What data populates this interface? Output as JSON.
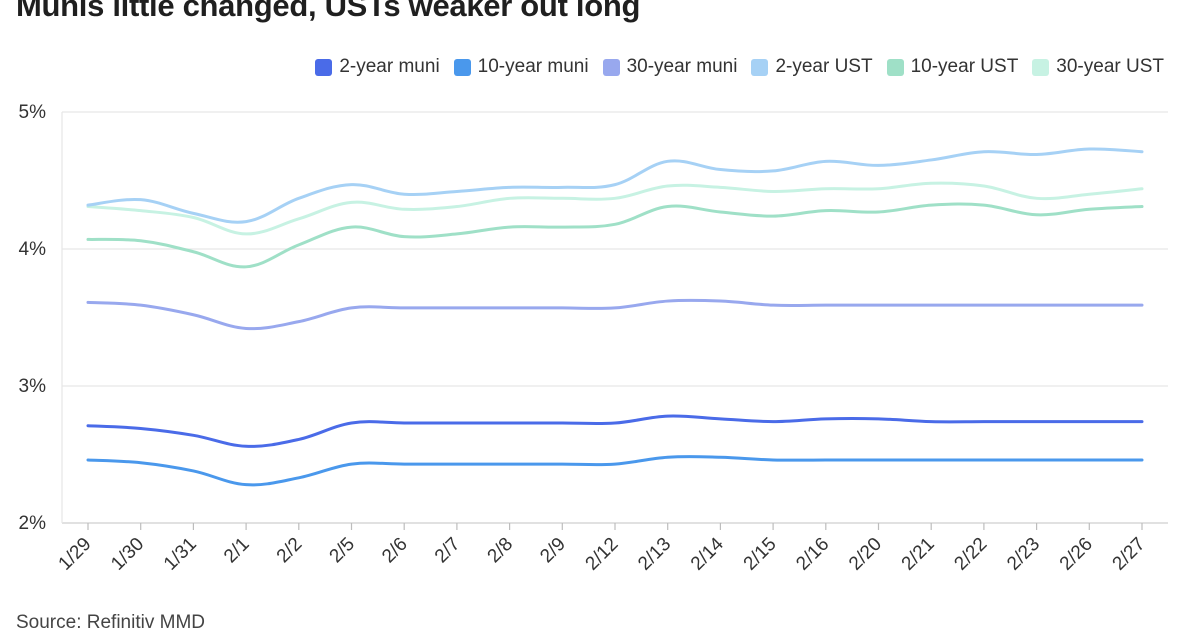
{
  "title": "Munis little changed, USTs weaker out long",
  "source": "Source: Refinitiv MMD",
  "chart_data": {
    "type": "line",
    "title": "Munis little changed, USTs weaker out long",
    "xlabel": "",
    "ylabel": "",
    "ylim": [
      2,
      5
    ],
    "yticks": [
      "2%",
      "3%",
      "4%",
      "5%"
    ],
    "yticks_values": [
      2,
      3,
      4,
      5
    ],
    "grid": true,
    "legend_position": "top-right",
    "categories": [
      "1/29",
      "1/30",
      "1/31",
      "2/1",
      "2/2",
      "2/5",
      "2/6",
      "2/7",
      "2/8",
      "2/9",
      "2/12",
      "2/13",
      "2/14",
      "2/15",
      "2/16",
      "2/20",
      "2/21",
      "2/22",
      "2/23",
      "2/26",
      "2/27"
    ],
    "series": [
      {
        "name": "2-year muni",
        "color": "#4a6be8",
        "values": [
          2.71,
          2.69,
          2.64,
          2.56,
          2.61,
          2.73,
          2.73,
          2.73,
          2.73,
          2.73,
          2.73,
          2.78,
          2.76,
          2.74,
          2.76,
          2.76,
          2.74,
          2.74,
          2.74,
          2.74,
          2.74
        ]
      },
      {
        "name": "10-year muni",
        "color": "#4a98ec",
        "values": [
          2.46,
          2.44,
          2.38,
          2.28,
          2.33,
          2.43,
          2.43,
          2.43,
          2.43,
          2.43,
          2.43,
          2.48,
          2.48,
          2.46,
          2.46,
          2.46,
          2.46,
          2.46,
          2.46,
          2.46,
          2.46
        ]
      },
      {
        "name": "30-year muni",
        "color": "#98a8ee",
        "values": [
          3.61,
          3.59,
          3.52,
          3.42,
          3.47,
          3.57,
          3.57,
          3.57,
          3.57,
          3.57,
          3.57,
          3.62,
          3.62,
          3.59,
          3.59,
          3.59,
          3.59,
          3.59,
          3.59,
          3.59,
          3.59
        ]
      },
      {
        "name": "2-year UST",
        "color": "#a6d1f5",
        "values": [
          4.32,
          4.36,
          4.26,
          4.2,
          4.37,
          4.47,
          4.4,
          4.42,
          4.45,
          4.45,
          4.47,
          4.64,
          4.58,
          4.57,
          4.64,
          4.61,
          4.65,
          4.71,
          4.69,
          4.73,
          4.71
        ]
      },
      {
        "name": "10-year UST",
        "color": "#9fe0c7",
        "values": [
          4.07,
          4.06,
          3.98,
          3.87,
          4.03,
          4.16,
          4.09,
          4.11,
          4.16,
          4.16,
          4.18,
          4.31,
          4.27,
          4.24,
          4.28,
          4.27,
          4.32,
          4.32,
          4.25,
          4.29,
          4.31
        ]
      },
      {
        "name": "30-year UST",
        "color": "#c7f2e3",
        "values": [
          4.31,
          4.28,
          4.23,
          4.11,
          4.22,
          4.34,
          4.29,
          4.31,
          4.37,
          4.37,
          4.37,
          4.46,
          4.45,
          4.42,
          4.44,
          4.44,
          4.48,
          4.46,
          4.37,
          4.4,
          4.44
        ]
      }
    ]
  }
}
